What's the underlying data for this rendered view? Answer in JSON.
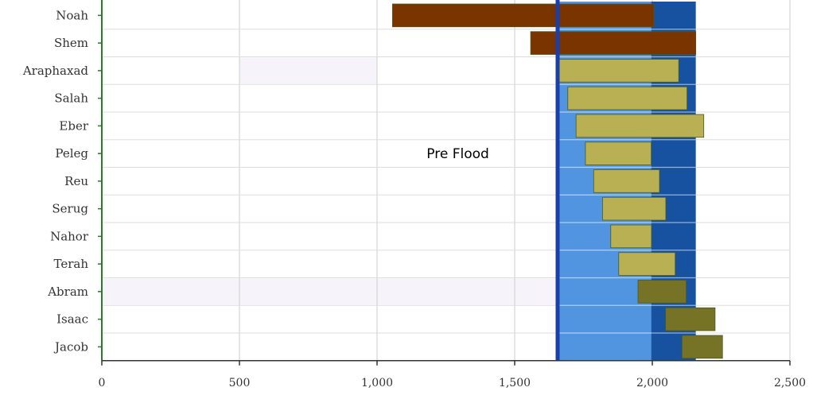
{
  "chart_data": {
    "type": "bar",
    "orientation": "horizontal",
    "categories": [
      "Noah",
      "Shem",
      "Araphaxad",
      "Salah",
      "Eber",
      "Peleg",
      "Reu",
      "Serug",
      "Nahor",
      "Terah",
      "Abram",
      "Isaac",
      "Jacob"
    ],
    "bars": [
      {
        "name": "Noah",
        "start": 1056,
        "end": 2006,
        "group": "pre-flood"
      },
      {
        "name": "Shem",
        "start": 1558,
        "end": 2158,
        "group": "pre-flood"
      },
      {
        "name": "Araphaxad",
        "start": 1658,
        "end": 2096,
        "group": "post-flood"
      },
      {
        "name": "Salah",
        "start": 1693,
        "end": 2126,
        "group": "post-flood"
      },
      {
        "name": "Eber",
        "start": 1723,
        "end": 2187,
        "group": "post-flood"
      },
      {
        "name": "Peleg",
        "start": 1757,
        "end": 1996,
        "group": "post-flood"
      },
      {
        "name": "Reu",
        "start": 1787,
        "end": 2026,
        "group": "post-flood"
      },
      {
        "name": "Serug",
        "start": 1819,
        "end": 2049,
        "group": "post-flood"
      },
      {
        "name": "Nahor",
        "start": 1849,
        "end": 1997,
        "group": "post-flood"
      },
      {
        "name": "Terah",
        "start": 1878,
        "end": 2083,
        "group": "post-flood"
      },
      {
        "name": "Abram",
        "start": 1948,
        "end": 2123,
        "group": "patriarch"
      },
      {
        "name": "Isaac",
        "start": 2048,
        "end": 2228,
        "group": "patriarch"
      },
      {
        "name": "Jacob",
        "start": 2108,
        "end": 2255,
        "group": "patriarch"
      }
    ],
    "bands": [
      {
        "start": 1656,
        "end": 1996,
        "color": "#5195e0"
      },
      {
        "start": 1996,
        "end": 2158,
        "color": "#1652a0"
      }
    ],
    "shaded_rows": [
      {
        "category": "Araphaxad",
        "start": 500,
        "end": 1000
      },
      {
        "category": "Abram",
        "start": 0,
        "end": 1656
      }
    ],
    "flood_line": 1656,
    "annotation": {
      "text": "Pre Flood",
      "x": 1180,
      "category": "Peleg"
    },
    "xlim": [
      0,
      2500
    ],
    "xticks": [
      0,
      500,
      1000,
      1500,
      2000,
      2500
    ],
    "xtick_labels": [
      "0",
      "500",
      "1,000",
      "1,500",
      "2,000",
      "2,500"
    ],
    "grid": true,
    "colors": {
      "pre-flood": "#7a3400",
      "post-flood": "#b8b052",
      "patriarch": "#767226",
      "band_light": "#5195e0",
      "band_dark": "#1652a0",
      "flood_line": "#1a3faa",
      "grid": "#cccccc",
      "axis": "#2a7a2a",
      "row_shade": "#f6f4fa"
    }
  }
}
